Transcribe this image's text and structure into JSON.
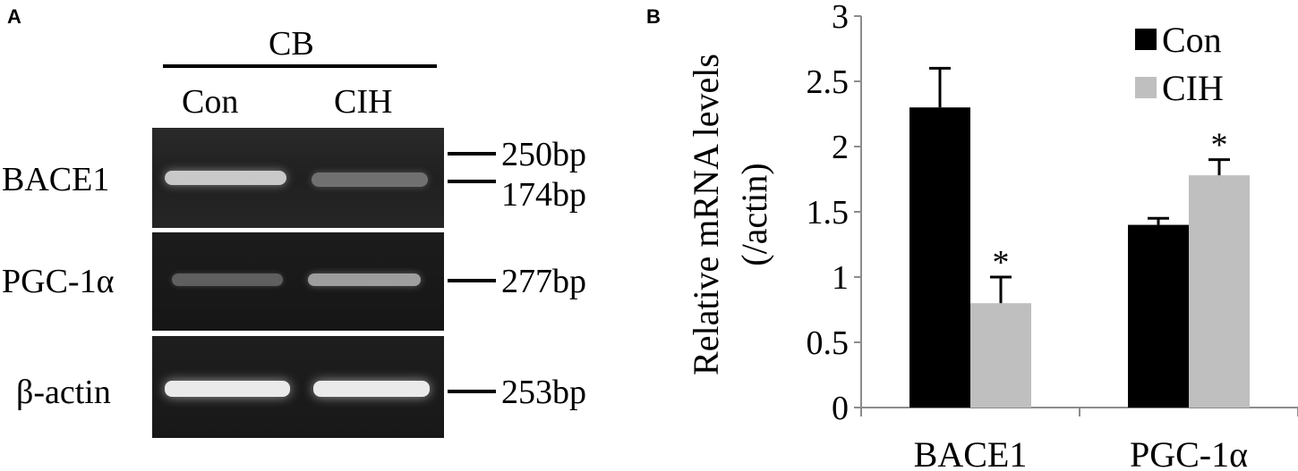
{
  "panel_a": {
    "letter": "A",
    "group_label": "CB",
    "lanes": [
      "Con",
      "CIH"
    ],
    "rows": [
      {
        "label": "BACE1",
        "markers": [
          "250bp",
          "174bp"
        ],
        "band_intensity": [
          0.85,
          0.45
        ]
      },
      {
        "label": "PGC-1α",
        "markers": [
          "277bp"
        ],
        "band_intensity": [
          0.4,
          0.7
        ]
      },
      {
        "label": "β-actin",
        "markers": [
          "253bp"
        ],
        "band_intensity": [
          0.95,
          0.95
        ]
      }
    ]
  },
  "panel_b": {
    "letter": "B"
  },
  "chart_data": {
    "type": "bar",
    "title": "",
    "ylabel_line1": "Relative mRNA levels",
    "ylabel_line2": "(/actin)",
    "xlabel": "",
    "categories": [
      "BACE1",
      "PGC-1α"
    ],
    "series": [
      {
        "name": "Con",
        "color": "#000000",
        "values": [
          2.3,
          1.4
        ],
        "errors": [
          0.3,
          0.05
        ],
        "significant": [
          false,
          false
        ]
      },
      {
        "name": "CIH",
        "color": "#bfbfbf",
        "values": [
          0.8,
          1.78
        ],
        "errors": [
          0.2,
          0.12
        ],
        "significant": [
          true,
          true
        ]
      }
    ],
    "ylim": [
      0,
      3
    ],
    "yticks": [
      "0",
      "0.5",
      "1",
      "1.5",
      "2",
      "2.5",
      "3"
    ],
    "significance_marker": "*",
    "legend_position": "top-right",
    "grid": false
  }
}
